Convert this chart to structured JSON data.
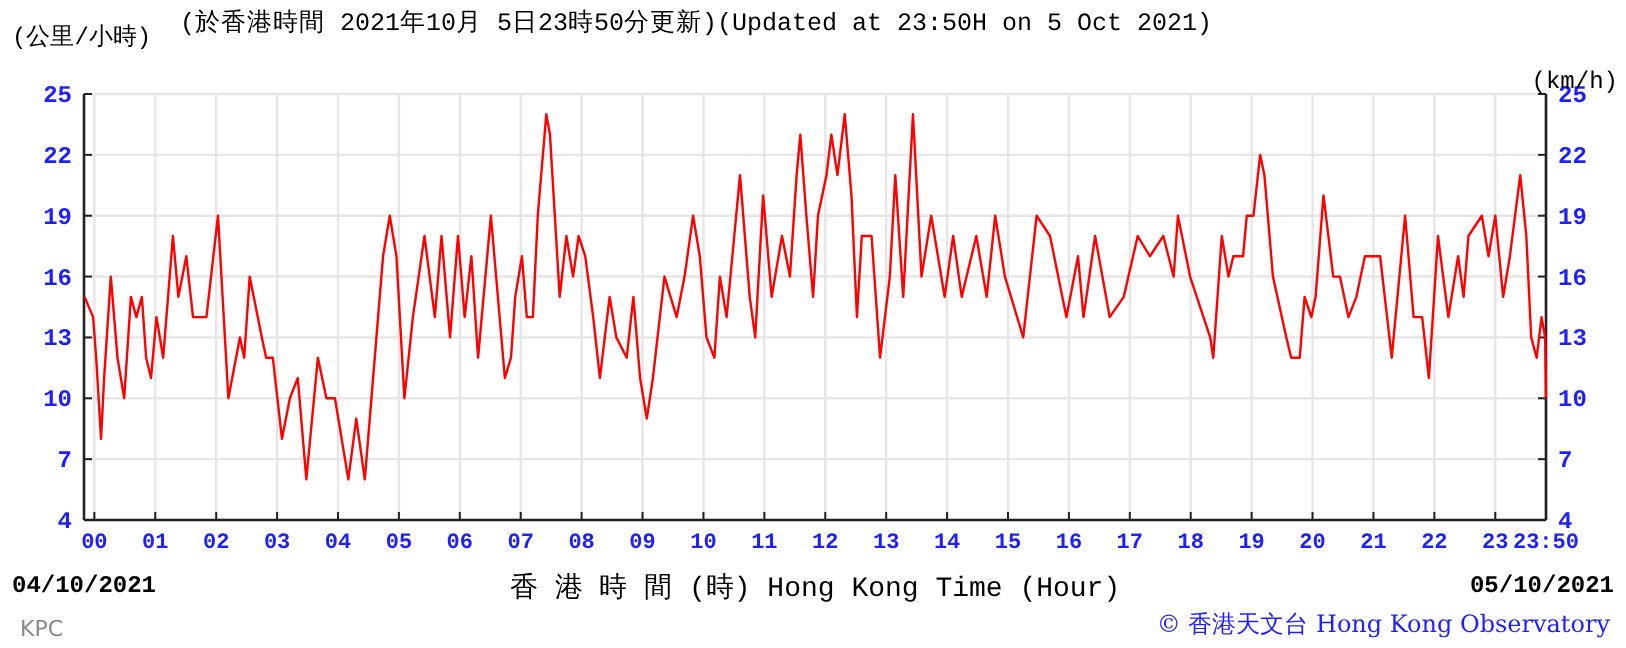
{
  "chart_data": {
    "type": "line",
    "title": "(於香港時間 2021年10月 5日23時50分更新)(Updated at 23:50H on 5 Oct 2021)",
    "ylabel": "(公里/小時)",
    "y2label": "(km/h)",
    "xlabel": "香 港 時 間 (時) Hong Kong Time (Hour)",
    "annotations": [
      "04/10/2021",
      "05/10/2021",
      "KPC",
      "© 香港天文台 Hong Kong Observatory"
    ],
    "xlim": [
      -0.17,
      23.833
    ],
    "xticks": [
      {
        "value": 0,
        "label": "00"
      },
      {
        "value": 1,
        "label": "01"
      },
      {
        "value": 2,
        "label": "02"
      },
      {
        "value": 3,
        "label": "03"
      },
      {
        "value": 4,
        "label": "04"
      },
      {
        "value": 5,
        "label": "05"
      },
      {
        "value": 6,
        "label": "06"
      },
      {
        "value": 7,
        "label": "07"
      },
      {
        "value": 8,
        "label": "08"
      },
      {
        "value": 9,
        "label": "09"
      },
      {
        "value": 10,
        "label": "10"
      },
      {
        "value": 11,
        "label": "11"
      },
      {
        "value": 12,
        "label": "12"
      },
      {
        "value": 13,
        "label": "13"
      },
      {
        "value": 14,
        "label": "14"
      },
      {
        "value": 15,
        "label": "15"
      },
      {
        "value": 16,
        "label": "16"
      },
      {
        "value": 17,
        "label": "17"
      },
      {
        "value": 18,
        "label": "18"
      },
      {
        "value": 19,
        "label": "19"
      },
      {
        "value": 20,
        "label": "20"
      },
      {
        "value": 21,
        "label": "21"
      },
      {
        "value": 22,
        "label": "22"
      },
      {
        "value": 23,
        "label": "23"
      },
      {
        "value": 23.833,
        "label": "23:50"
      }
    ],
    "ylim": [
      4,
      25
    ],
    "yticks": [
      4,
      7,
      10,
      13,
      16,
      19,
      22,
      25
    ],
    "y2lim": [
      4,
      25
    ],
    "y2ticks": [
      4,
      7,
      10,
      13,
      16,
      19,
      22,
      25
    ],
    "grid": true,
    "marker": "none",
    "line_style": "solid",
    "series": [
      {
        "color": "#ff0000",
        "x": [
          -0.16,
          -0.02,
          0.03,
          0.11,
          0.16,
          0.27,
          0.38,
          0.49,
          0.6,
          0.69,
          0.78,
          0.85,
          0.93,
          1.02,
          1.13,
          1.29,
          1.38,
          1.51,
          1.62,
          1.84,
          2.03,
          2.2,
          2.39,
          2.46,
          2.55,
          2.75,
          2.82,
          2.93,
          3.08,
          3.21,
          3.34,
          3.48,
          3.67,
          3.81,
          3.95,
          4.17,
          4.3,
          4.44,
          4.74,
          4.85,
          4.96,
          5.09,
          5.23,
          5.42,
          5.59,
          5.7,
          5.84,
          5.97,
          6.08,
          6.19,
          6.3,
          6.51,
          6.74,
          6.84,
          6.91,
          7.02,
          7.1,
          7.2,
          7.28,
          7.42,
          7.48,
          7.64,
          7.75,
          7.86,
          7.95,
          8.06,
          8.19,
          8.3,
          8.46,
          8.57,
          8.74,
          8.85,
          8.96,
          9.07,
          9.17,
          9.36,
          9.56,
          9.69,
          9.83,
          9.94,
          10.05,
          10.18,
          10.27,
          10.38,
          10.6,
          10.76,
          10.85,
          10.98,
          11.12,
          11.29,
          11.42,
          11.53,
          11.59,
          11.69,
          11.8,
          11.88,
          12.02,
          12.1,
          12.2,
          12.32,
          12.43,
          12.52,
          12.6,
          12.76,
          12.9,
          13.06,
          13.15,
          13.28,
          13.44,
          13.58,
          13.74,
          13.96,
          14.1,
          14.24,
          14.48,
          14.65,
          14.79,
          14.95,
          15.25,
          15.47,
          15.69,
          15.96,
          16.15,
          16.24,
          16.43,
          16.67,
          16.9,
          17.13,
          17.33,
          17.55,
          17.72,
          17.79,
          17.99,
          18.32,
          18.37,
          18.51,
          18.62,
          18.7,
          18.86,
          18.92,
          19.03,
          19.14,
          19.21,
          19.35,
          19.57,
          19.65,
          19.79,
          19.87,
          19.98,
          20.05,
          20.18,
          20.34,
          20.45,
          20.59,
          20.72,
          20.86,
          21.11,
          21.3,
          21.52,
          21.66,
          21.8,
          21.91,
          22.06,
          22.23,
          22.39,
          22.48,
          22.56,
          22.78,
          22.89,
          23.0,
          23.13,
          23.24,
          23.41,
          23.51,
          23.59,
          23.68,
          23.76,
          23.82,
          23.833
        ],
        "values": [
          15,
          14,
          12,
          8,
          11,
          16,
          12,
          10,
          15,
          14,
          15,
          12,
          11,
          14,
          12,
          18,
          15,
          17,
          14,
          14,
          19,
          10,
          13,
          12,
          16,
          13,
          12,
          12,
          8,
          10,
          11,
          6,
          12,
          10,
          10,
          6,
          9,
          6,
          17,
          19,
          17,
          10,
          14,
          18,
          14,
          18,
          13,
          18,
          14,
          17,
          12,
          19,
          11,
          12,
          15,
          17,
          14,
          14,
          19,
          24,
          23,
          15,
          18,
          16,
          18,
          17,
          14,
          11,
          15,
          13,
          12,
          15,
          11,
          9,
          11,
          16,
          14,
          16,
          19,
          17,
          13,
          12,
          16,
          14,
          21,
          15,
          13,
          20,
          15,
          18,
          16,
          21,
          23,
          19,
          15,
          19,
          21,
          23,
          21,
          24,
          20,
          14,
          18,
          18,
          12,
          16,
          21,
          15,
          24,
          16,
          19,
          15,
          18,
          15,
          18,
          15,
          19,
          16,
          13,
          19,
          18,
          14,
          17,
          14,
          18,
          14,
          15,
          18,
          17,
          18,
          16,
          19,
          16,
          13,
          12,
          18,
          16,
          17,
          17,
          19,
          19,
          22,
          21,
          16,
          13,
          12,
          12,
          15,
          14,
          15,
          20,
          16,
          16,
          14,
          15,
          17,
          17,
          12,
          19,
          14,
          14,
          11,
          18,
          14,
          17,
          15,
          18,
          19,
          17,
          19,
          15,
          17,
          21,
          18,
          13,
          12,
          14,
          13,
          10
        ]
      }
    ]
  }
}
